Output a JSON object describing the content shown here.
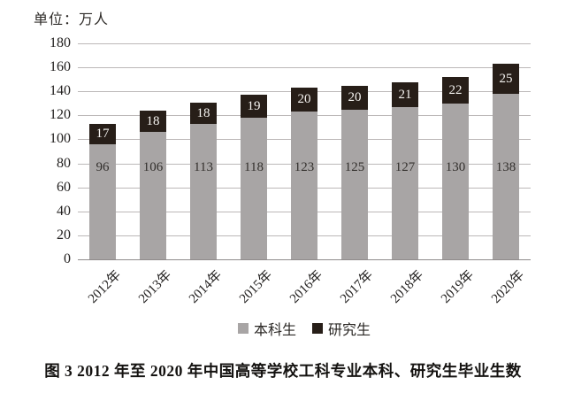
{
  "unit_label": "单位：万人",
  "caption": "图 3  2012 年至 2020 年中国高等学校工科专业本科、研究生毕业生数",
  "chart_data": {
    "type": "bar",
    "stacked": true,
    "title": "",
    "unit_label": "单位：万人",
    "categories": [
      "2012年",
      "2013年",
      "2014年",
      "2015年",
      "2016年",
      "2017年",
      "2018年",
      "2019年",
      "2020年"
    ],
    "series": [
      {
        "name": "本科生",
        "color": "#a8a5a5",
        "values": [
          96,
          106,
          113,
          118,
          123,
          125,
          127,
          130,
          138
        ]
      },
      {
        "name": "研究生",
        "color": "#271e18",
        "values": [
          17,
          18,
          18,
          19,
          20,
          20,
          21,
          22,
          25
        ]
      }
    ],
    "ylim": [
      0,
      180
    ],
    "ytick_step": 20,
    "grid": true,
    "legend_position": "bottom",
    "colors": {
      "gridline": "#bcb8b8",
      "axis_line": "#8f8b8b",
      "value_label_on_gray": "#33302d",
      "value_label_on_black": "#f6f4f1"
    }
  }
}
